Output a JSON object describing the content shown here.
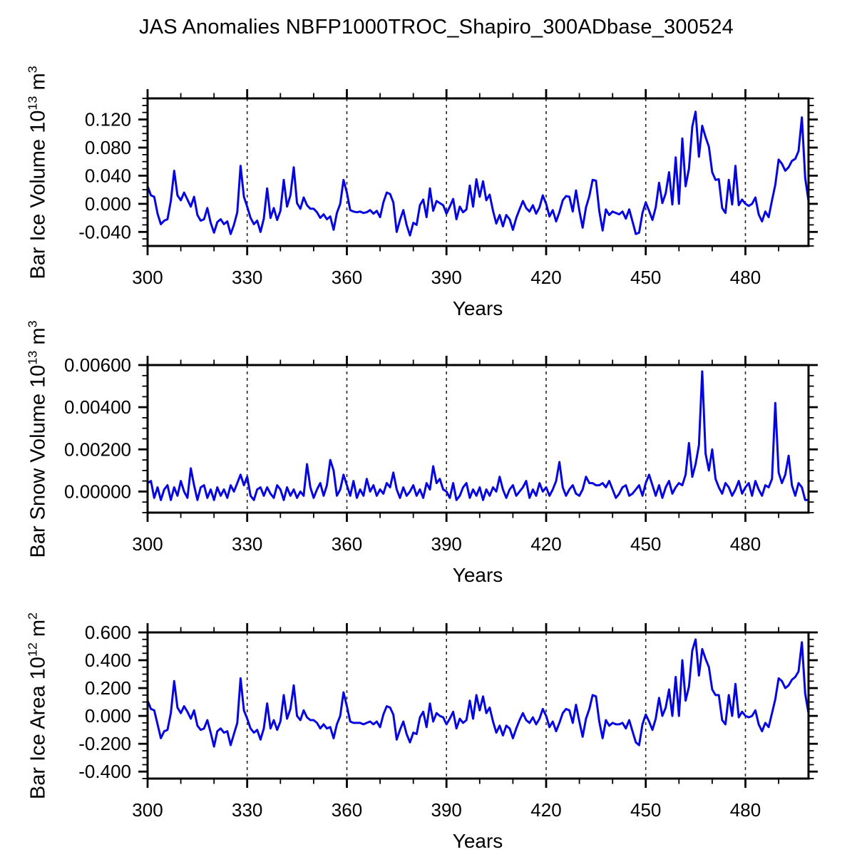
{
  "page": {
    "title": "JAS Anomalies NBFP1000TROC_Shapiro_300ADbase_300524",
    "background_color": "#ffffff",
    "axis_color": "#000000"
  },
  "chart_data": [
    {
      "type": "line",
      "id": "bar-ice-volume",
      "title": "",
      "xlabel": "Years",
      "ylabel_text": "Bar Ice Volume 10^13 m^3",
      "ylabel_parts": {
        "prefix": "Bar Ice Volume 10",
        "exponent": "13",
        "unit": " m",
        "unit_exponent": "3"
      },
      "line_color": "#0505E0",
      "grid": "vertical-dashed",
      "x_start": 300,
      "x_end": 499,
      "ylim": [
        -0.06,
        0.15
      ],
      "yticks": {
        "major_values": [
          0.12,
          0.08,
          0.04,
          0.0,
          -0.04
        ],
        "major_labels": [
          "0.120",
          "0.080",
          "0.040",
          "0.000",
          "-0.040"
        ],
        "minor_step": 0.01
      },
      "xticks": {
        "major_values": [
          300,
          330,
          360,
          390,
          420,
          450,
          480
        ],
        "major_labels": [
          "300",
          "330",
          "360",
          "390",
          "420",
          "450",
          "480"
        ],
        "minor_step": 10,
        "grid_at": [
          330,
          360,
          390,
          420,
          450,
          480
        ]
      },
      "values": [
        0.025,
        0.012,
        0.01,
        -0.014,
        -0.029,
        -0.024,
        -0.022,
        0.004,
        0.047,
        0.012,
        0.005,
        0.016,
        0.006,
        -0.004,
        0.01,
        -0.016,
        -0.024,
        -0.022,
        -0.006,
        -0.027,
        -0.041,
        -0.026,
        -0.022,
        -0.029,
        -0.025,
        -0.043,
        -0.03,
        -0.012,
        0.054,
        0.01,
        -0.004,
        -0.02,
        -0.029,
        -0.024,
        -0.04,
        -0.021,
        0.022,
        -0.02,
        -0.006,
        -0.023,
        -0.01,
        0.034,
        -0.004,
        0.012,
        0.052,
        0.001,
        -0.007,
        0.009,
        -0.002,
        -0.007,
        -0.007,
        -0.012,
        -0.02,
        -0.015,
        -0.022,
        -0.018,
        -0.037,
        -0.013,
        0.0,
        0.034,
        0.016,
        -0.009,
        -0.011,
        -0.012,
        -0.011,
        -0.013,
        -0.012,
        -0.009,
        -0.014,
        -0.01,
        -0.019,
        0.002,
        0.016,
        0.014,
        0.002,
        -0.04,
        -0.023,
        -0.009,
        -0.03,
        -0.045,
        -0.027,
        -0.03,
        -0.002,
        0.006,
        -0.019,
        0.022,
        -0.01,
        0.004,
        0.001,
        -0.002,
        -0.014,
        -0.004,
        0.007,
        -0.022,
        -0.004,
        -0.012,
        -0.008,
        0.026,
        -0.004,
        0.035,
        0.01,
        0.032,
        0.005,
        0.013,
        -0.01,
        -0.028,
        -0.016,
        -0.032,
        -0.016,
        -0.022,
        -0.037,
        -0.02,
        -0.008,
        0.004,
        -0.006,
        -0.011,
        -0.002,
        -0.014,
        -0.005,
        0.012,
        0.0,
        -0.018,
        -0.009,
        -0.025,
        -0.012,
        0.005,
        0.011,
        0.01,
        -0.011,
        0.019,
        -0.01,
        -0.034,
        -0.005,
        0.011,
        0.034,
        0.033,
        -0.01,
        -0.038,
        -0.008,
        -0.016,
        -0.011,
        -0.013,
        -0.015,
        -0.011,
        -0.021,
        -0.008,
        -0.025,
        -0.043,
        -0.041,
        -0.013,
        0.002,
        -0.01,
        -0.023,
        -0.005,
        0.03,
        0.001,
        0.015,
        0.045,
        -0.001,
        0.066,
        0.0,
        0.093,
        0.025,
        0.05,
        0.11,
        0.131,
        0.067,
        0.111,
        0.095,
        0.081,
        0.045,
        0.034,
        0.035,
        -0.006,
        -0.013,
        0.034,
        -0.001,
        0.054,
        -0.002,
        0.006,
        0.0,
        -0.003,
        0.0,
        0.009,
        -0.015,
        -0.025,
        -0.011,
        -0.019,
        0.005,
        0.027,
        0.063,
        0.057,
        0.047,
        0.052,
        0.061,
        0.064,
        0.075,
        0.123,
        0.037,
        0.004
      ]
    },
    {
      "type": "line",
      "id": "bar-snow-volume",
      "title": "",
      "xlabel": "Years",
      "ylabel_text": "Bar Snow Volume 10^13 m^3",
      "ylabel_parts": {
        "prefix": "Bar Snow Volume 10",
        "exponent": "13",
        "unit": " m",
        "unit_exponent": "3"
      },
      "line_color": "#0505E0",
      "grid": "vertical-dashed",
      "x_start": 300,
      "x_end": 499,
      "ylim": [
        -0.001,
        0.006
      ],
      "yticks": {
        "major_values": [
          0.006,
          0.004,
          0.002,
          0.0
        ],
        "major_labels": [
          "0.00600",
          "0.00400",
          "0.00200",
          "0.00000"
        ],
        "minor_step": 0.0005
      },
      "xticks": {
        "major_values": [
          300,
          330,
          360,
          390,
          420,
          450,
          480
        ],
        "major_labels": [
          "300",
          "330",
          "360",
          "390",
          "420",
          "450",
          "480"
        ],
        "minor_step": 10,
        "grid_at": [
          330,
          360,
          390,
          420,
          450,
          480
        ]
      },
      "values": [
        0.0004,
        0.0005,
        -0.0003,
        0.0002,
        -0.0004,
        0.0001,
        0.0003,
        -0.0004,
        0.0002,
        -0.0002,
        0.0005,
        0.0,
        -0.0003,
        0.0011,
        0.0003,
        -0.0004,
        0.0002,
        0.0003,
        -0.0003,
        0.0001,
        -0.0004,
        0.0002,
        -0.0002,
        0.0001,
        -0.0003,
        0.0003,
        0.0,
        0.0004,
        0.0008,
        0.0003,
        0.0007,
        -0.0002,
        -0.0004,
        0.0001,
        0.0002,
        -0.0002,
        0.0002,
        -0.0001,
        -0.0003,
        0.0003,
        0.0001,
        -0.0004,
        0.0002,
        -0.0002,
        0.0001,
        -0.0003,
        0.0,
        -0.0002,
        0.0013,
        0.0002,
        -0.0003,
        0.0001,
        0.0004,
        -0.0002,
        0.0003,
        0.0015,
        0.001,
        -0.0002,
        0.0001,
        0.0008,
        0.0003,
        -0.0002,
        0.0005,
        -0.0003,
        0.0001,
        -0.0002,
        0.0006,
        0.0,
        0.0003,
        -0.0002,
        0.0001,
        -0.0001,
        0.0004,
        0.0002,
        0.0009,
        0.0001,
        -0.0003,
        0.0002,
        -0.0002,
        0.0,
        0.0003,
        -0.0002,
        0.0001,
        -0.0003,
        0.0004,
        0.0001,
        0.0012,
        0.0004,
        0.0006,
        0.0001,
        0.0,
        -0.0003,
        0.0004,
        -0.0004,
        -0.0002,
        0.0002,
        0.0004,
        -0.0003,
        0.0001,
        -0.0002,
        0.0002,
        -0.0004,
        0.0001,
        -0.0002,
        0.0002,
        0.0,
        0.0007,
        0.0001,
        -0.0003,
        0.0001,
        0.0003,
        -0.0002,
        0.0,
        0.0002,
        0.0005,
        -0.0003,
        0.0001,
        -0.0002,
        0.0004,
        0.0,
        0.0002,
        -0.0002,
        0.0001,
        0.0005,
        0.0014,
        0.0002,
        -0.0002,
        0.0001,
        0.0003,
        -0.0001,
        -0.0002,
        0.0001,
        0.0007,
        0.0004,
        0.0004,
        0.0003,
        0.0003,
        0.0004,
        0.0002,
        0.0005,
        0.0001,
        -0.0003,
        -0.0001,
        0.0002,
        0.0003,
        -0.0002,
        -0.0001,
        0.0001,
        0.0003,
        -0.0002,
        0.0004,
        0.0008,
        0.0003,
        -0.0002,
        0.0003,
        -0.0003,
        0.0002,
        0.0005,
        -0.0001,
        0.0002,
        0.0004,
        0.0003,
        0.0008,
        0.0023,
        0.0007,
        0.0013,
        0.0022,
        0.0057,
        0.0018,
        0.001,
        0.002,
        0.0006,
        0.0002,
        -0.0001,
        0.0004,
        0.0002,
        -0.0002,
        0.0001,
        0.0005,
        -0.0001,
        0.0002,
        0.0004,
        -0.0002,
        0.0005,
        0.0001,
        -0.0002,
        0.0003,
        0.0002,
        0.0006,
        0.0042,
        0.0009,
        0.0004,
        0.0008,
        0.0017,
        0.0003,
        -0.0002,
        0.0004,
        0.0002,
        -0.0004,
        -0.0004
      ]
    },
    {
      "type": "line",
      "id": "bar-ice-area",
      "title": "",
      "xlabel": "Years",
      "ylabel_text": "Bar Ice Area 10^12 m^2",
      "ylabel_parts": {
        "prefix": "Bar Ice Area 10",
        "exponent": "12",
        "unit": " m",
        "unit_exponent": "2"
      },
      "line_color": "#0505E0",
      "grid": "vertical-dashed",
      "x_start": 300,
      "x_end": 499,
      "ylim": [
        -0.45,
        0.6
      ],
      "yticks": {
        "major_values": [
          0.6,
          0.4,
          0.2,
          0.0,
          -0.2,
          -0.4
        ],
        "major_labels": [
          "0.600",
          "0.400",
          "0.200",
          "0.000",
          "-0.200",
          "-0.400"
        ],
        "minor_step": 0.05
      },
      "xticks": {
        "major_values": [
          300,
          330,
          360,
          390,
          420,
          450,
          480
        ],
        "major_labels": [
          "300",
          "330",
          "360",
          "390",
          "420",
          "450",
          "480"
        ],
        "minor_step": 10,
        "grid_at": [
          330,
          360,
          390,
          420,
          450,
          480
        ]
      },
      "values": [
        0.11,
        0.05,
        0.04,
        -0.06,
        -0.16,
        -0.11,
        -0.1,
        0.02,
        0.25,
        0.06,
        0.02,
        0.07,
        0.03,
        -0.02,
        0.04,
        -0.07,
        -0.1,
        -0.09,
        -0.03,
        -0.12,
        -0.22,
        -0.11,
        -0.09,
        -0.12,
        -0.11,
        -0.21,
        -0.13,
        -0.05,
        0.27,
        0.04,
        -0.02,
        -0.09,
        -0.12,
        -0.1,
        -0.17,
        -0.09,
        0.09,
        -0.09,
        -0.03,
        -0.1,
        -0.04,
        0.15,
        -0.02,
        0.05,
        0.22,
        0.0,
        -0.03,
        0.04,
        -0.01,
        -0.03,
        -0.03,
        -0.05,
        -0.09,
        -0.06,
        -0.09,
        -0.08,
        -0.16,
        -0.06,
        0.0,
        0.17,
        0.07,
        -0.04,
        -0.05,
        -0.05,
        -0.05,
        -0.06,
        -0.05,
        -0.04,
        -0.06,
        -0.04,
        -0.08,
        0.01,
        0.07,
        0.06,
        0.01,
        -0.17,
        -0.1,
        -0.04,
        -0.13,
        -0.19,
        -0.12,
        -0.13,
        -0.01,
        0.03,
        -0.08,
        0.09,
        -0.04,
        0.02,
        0.0,
        -0.01,
        -0.06,
        -0.02,
        0.03,
        -0.09,
        -0.02,
        -0.05,
        -0.03,
        0.11,
        -0.02,
        0.15,
        0.04,
        0.14,
        0.02,
        0.06,
        -0.04,
        -0.12,
        -0.07,
        -0.14,
        -0.07,
        -0.09,
        -0.16,
        -0.09,
        -0.03,
        0.02,
        -0.03,
        -0.05,
        -0.01,
        -0.06,
        -0.02,
        0.05,
        0.0,
        -0.08,
        -0.04,
        -0.11,
        -0.05,
        0.02,
        0.05,
        0.04,
        -0.05,
        0.08,
        -0.04,
        -0.15,
        -0.02,
        0.05,
        0.15,
        0.14,
        -0.04,
        -0.16,
        -0.03,
        -0.07,
        -0.05,
        -0.06,
        -0.06,
        -0.05,
        -0.09,
        -0.03,
        -0.11,
        -0.19,
        -0.21,
        -0.06,
        0.01,
        -0.04,
        -0.1,
        -0.02,
        0.13,
        0.0,
        0.06,
        0.19,
        0.0,
        0.28,
        0.0,
        0.4,
        0.11,
        0.21,
        0.47,
        0.55,
        0.29,
        0.48,
        0.41,
        0.35,
        0.19,
        0.15,
        0.15,
        -0.03,
        -0.06,
        0.15,
        0.0,
        0.23,
        -0.01,
        0.03,
        0.0,
        -0.01,
        0.0,
        0.04,
        -0.06,
        -0.11,
        -0.05,
        -0.08,
        0.02,
        0.12,
        0.27,
        0.25,
        0.2,
        0.22,
        0.26,
        0.28,
        0.32,
        0.53,
        0.16,
        0.02
      ]
    }
  ]
}
